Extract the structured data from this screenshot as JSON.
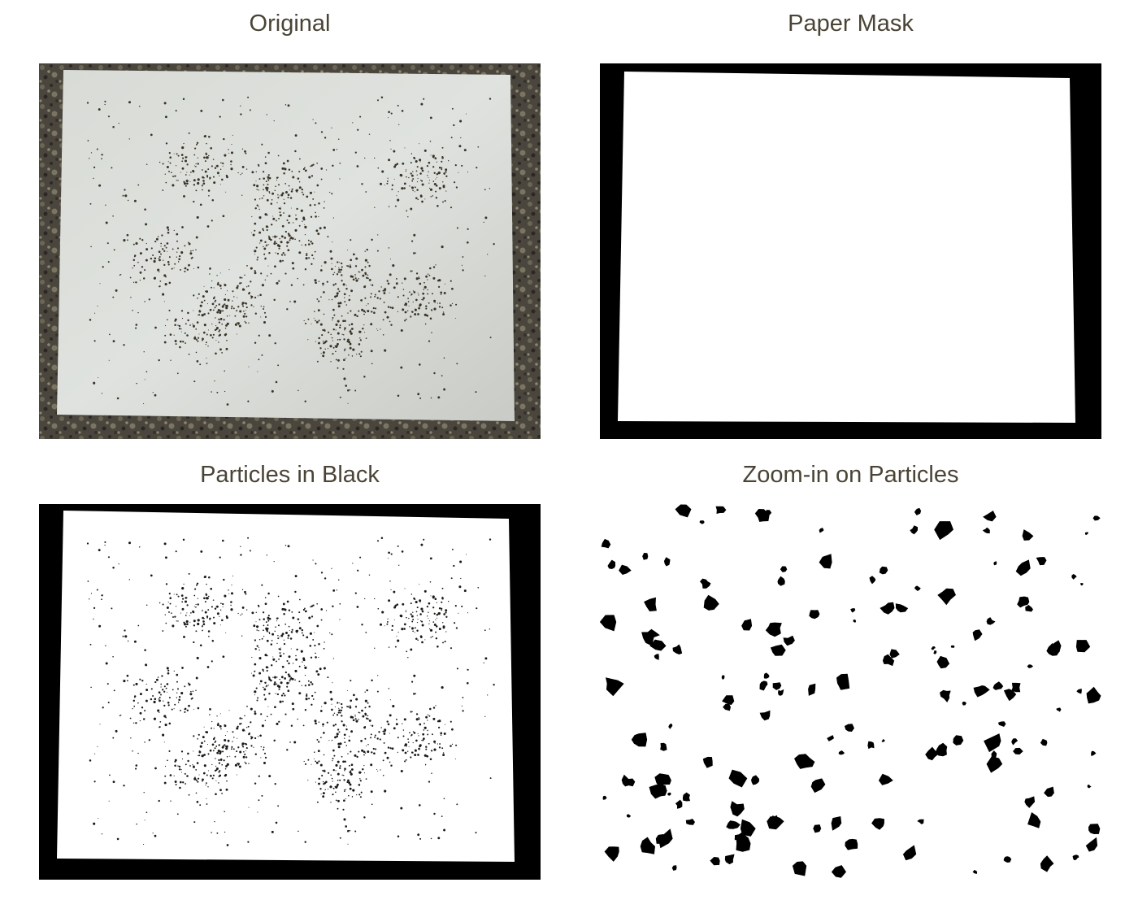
{
  "figure": {
    "panels": [
      {
        "key": "original",
        "title": "Original"
      },
      {
        "key": "mask",
        "title": "Paper Mask"
      },
      {
        "key": "particles",
        "title": "Particles in Black"
      },
      {
        "key": "zoom",
        "title": "Zoom-in on Particles"
      }
    ]
  },
  "colors": {
    "title_text": "#4a4436",
    "countertop_dark": "#3d3a33",
    "paper_gray": "#d9dcd7",
    "mask_black": "#000000",
    "particle": "#1d1b16"
  }
}
